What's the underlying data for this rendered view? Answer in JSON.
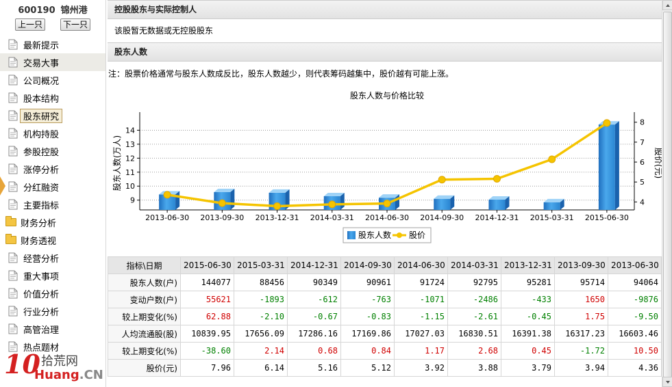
{
  "stock": {
    "code": "600190",
    "name": "锦州港",
    "prev_label": "上一只",
    "next_label": "下一只"
  },
  "menu": [
    {
      "label": "最新提示",
      "type": "doc"
    },
    {
      "label": "交易大事",
      "type": "doc",
      "state": "hover"
    },
    {
      "label": "公司概况",
      "type": "doc"
    },
    {
      "label": "股本结构",
      "type": "doc"
    },
    {
      "label": "股东研究",
      "type": "doc",
      "state": "active"
    },
    {
      "label": "机构持股",
      "type": "doc"
    },
    {
      "label": "参股控股",
      "type": "doc"
    },
    {
      "label": "涨停分析",
      "type": "doc"
    },
    {
      "label": "分红融资",
      "type": "doc"
    },
    {
      "label": "主要指标",
      "type": "doc"
    },
    {
      "label": "财务分析",
      "type": "folder"
    },
    {
      "label": "财务透视",
      "type": "folder"
    },
    {
      "label": "经营分析",
      "type": "doc"
    },
    {
      "label": "重大事项",
      "type": "doc"
    },
    {
      "label": "价值分析",
      "type": "doc"
    },
    {
      "label": "行业分析",
      "type": "doc"
    },
    {
      "label": "高管治理",
      "type": "doc"
    },
    {
      "label": "热点题材",
      "type": "doc"
    }
  ],
  "logo": {
    "big": "10",
    "cn": "拾荒网",
    "en_main": "Huang",
    "en_suffix": ".CN"
  },
  "section1": {
    "title": "控股股东与实际控制人",
    "body": "该股暂无数据或无控股股东"
  },
  "section2": {
    "title": "股东人数",
    "note": "注：股票价格通常与股东人数成反比，股东人数越少，则代表筹码越集中，股价越有可能上涨。"
  },
  "chart_data": {
    "type": "bar+line",
    "title": "股东人数与价格比较",
    "categories": [
      "2013-06-30",
      "2013-09-30",
      "2013-12-31",
      "2014-03-31",
      "2014-06-30",
      "2014-09-30",
      "2014-12-31",
      "2015-03-31",
      "2015-06-30"
    ],
    "ylabel_left": "股东人数(万人)",
    "ylabel_right": "股价(元)",
    "ylim_left": [
      8.3,
      15
    ],
    "yticks_left": [
      9,
      10,
      11,
      12,
      13,
      14
    ],
    "ylim_right": [
      3.6,
      8.3
    ],
    "yticks_right": [
      4,
      5,
      6,
      7,
      8
    ],
    "grid": true,
    "legend_position": "bottom-center",
    "series": [
      {
        "name": "股东人数",
        "kind": "bar",
        "axis": "left",
        "color": "#3a9ad9",
        "values": [
          9.4064,
          9.5714,
          9.5281,
          9.2795,
          9.1724,
          9.0961,
          9.0349,
          8.8456,
          14.4077
        ]
      },
      {
        "name": "股价",
        "kind": "line",
        "axis": "right",
        "color": "#f5c400",
        "values": [
          4.36,
          3.94,
          3.79,
          3.88,
          3.92,
          5.12,
          5.16,
          6.14,
          7.96
        ]
      }
    ]
  },
  "table": {
    "header": [
      "指标\\日期",
      "2015-06-30",
      "2015-03-31",
      "2014-12-31",
      "2014-09-30",
      "2014-06-30",
      "2014-03-31",
      "2013-12-31",
      "2013-09-30",
      "2013-06-30"
    ],
    "rows": [
      {
        "label": "股东人数(户)",
        "cells": [
          {
            "v": "144077"
          },
          {
            "v": "88456"
          },
          {
            "v": "90349"
          },
          {
            "v": "90961"
          },
          {
            "v": "91724"
          },
          {
            "v": "92795"
          },
          {
            "v": "95281"
          },
          {
            "v": "95714"
          },
          {
            "v": "94064"
          }
        ]
      },
      {
        "label": "变动户数(户)",
        "cells": [
          {
            "v": "55621",
            "c": "red"
          },
          {
            "v": "-1893",
            "c": "green"
          },
          {
            "v": "-612",
            "c": "green"
          },
          {
            "v": "-763",
            "c": "green"
          },
          {
            "v": "-1071",
            "c": "green"
          },
          {
            "v": "-2486",
            "c": "green"
          },
          {
            "v": "-433",
            "c": "green"
          },
          {
            "v": "1650",
            "c": "red"
          },
          {
            "v": "-9876",
            "c": "green"
          }
        ]
      },
      {
        "label": "较上期变化(%)",
        "cells": [
          {
            "v": "62.88",
            "c": "red"
          },
          {
            "v": "-2.10",
            "c": "green"
          },
          {
            "v": "-0.67",
            "c": "green"
          },
          {
            "v": "-0.83",
            "c": "green"
          },
          {
            "v": "-1.15",
            "c": "green"
          },
          {
            "v": "-2.61",
            "c": "green"
          },
          {
            "v": "-0.45",
            "c": "green"
          },
          {
            "v": "1.75",
            "c": "red"
          },
          {
            "v": "-9.50",
            "c": "green"
          }
        ]
      },
      {
        "label": "人均流通股(股)",
        "cells": [
          {
            "v": "10839.95"
          },
          {
            "v": "17656.09"
          },
          {
            "v": "17286.16"
          },
          {
            "v": "17169.86"
          },
          {
            "v": "17027.03"
          },
          {
            "v": "16830.51"
          },
          {
            "v": "16391.38"
          },
          {
            "v": "16317.23"
          },
          {
            "v": "16603.46"
          }
        ]
      },
      {
        "label": "较上期变化(%)",
        "cells": [
          {
            "v": "-38.60",
            "c": "green"
          },
          {
            "v": "2.14",
            "c": "red"
          },
          {
            "v": "0.68",
            "c": "red"
          },
          {
            "v": "0.84",
            "c": "red"
          },
          {
            "v": "1.17",
            "c": "red"
          },
          {
            "v": "2.68",
            "c": "red"
          },
          {
            "v": "0.45",
            "c": "red"
          },
          {
            "v": "-1.72",
            "c": "green"
          },
          {
            "v": "10.50",
            "c": "red"
          }
        ]
      },
      {
        "label": "股价(元)",
        "cells": [
          {
            "v": "7.96"
          },
          {
            "v": "6.14"
          },
          {
            "v": "5.16"
          },
          {
            "v": "5.12"
          },
          {
            "v": "3.92"
          },
          {
            "v": "3.88"
          },
          {
            "v": "3.79"
          },
          {
            "v": "3.94"
          },
          {
            "v": "4.36"
          }
        ]
      }
    ]
  }
}
